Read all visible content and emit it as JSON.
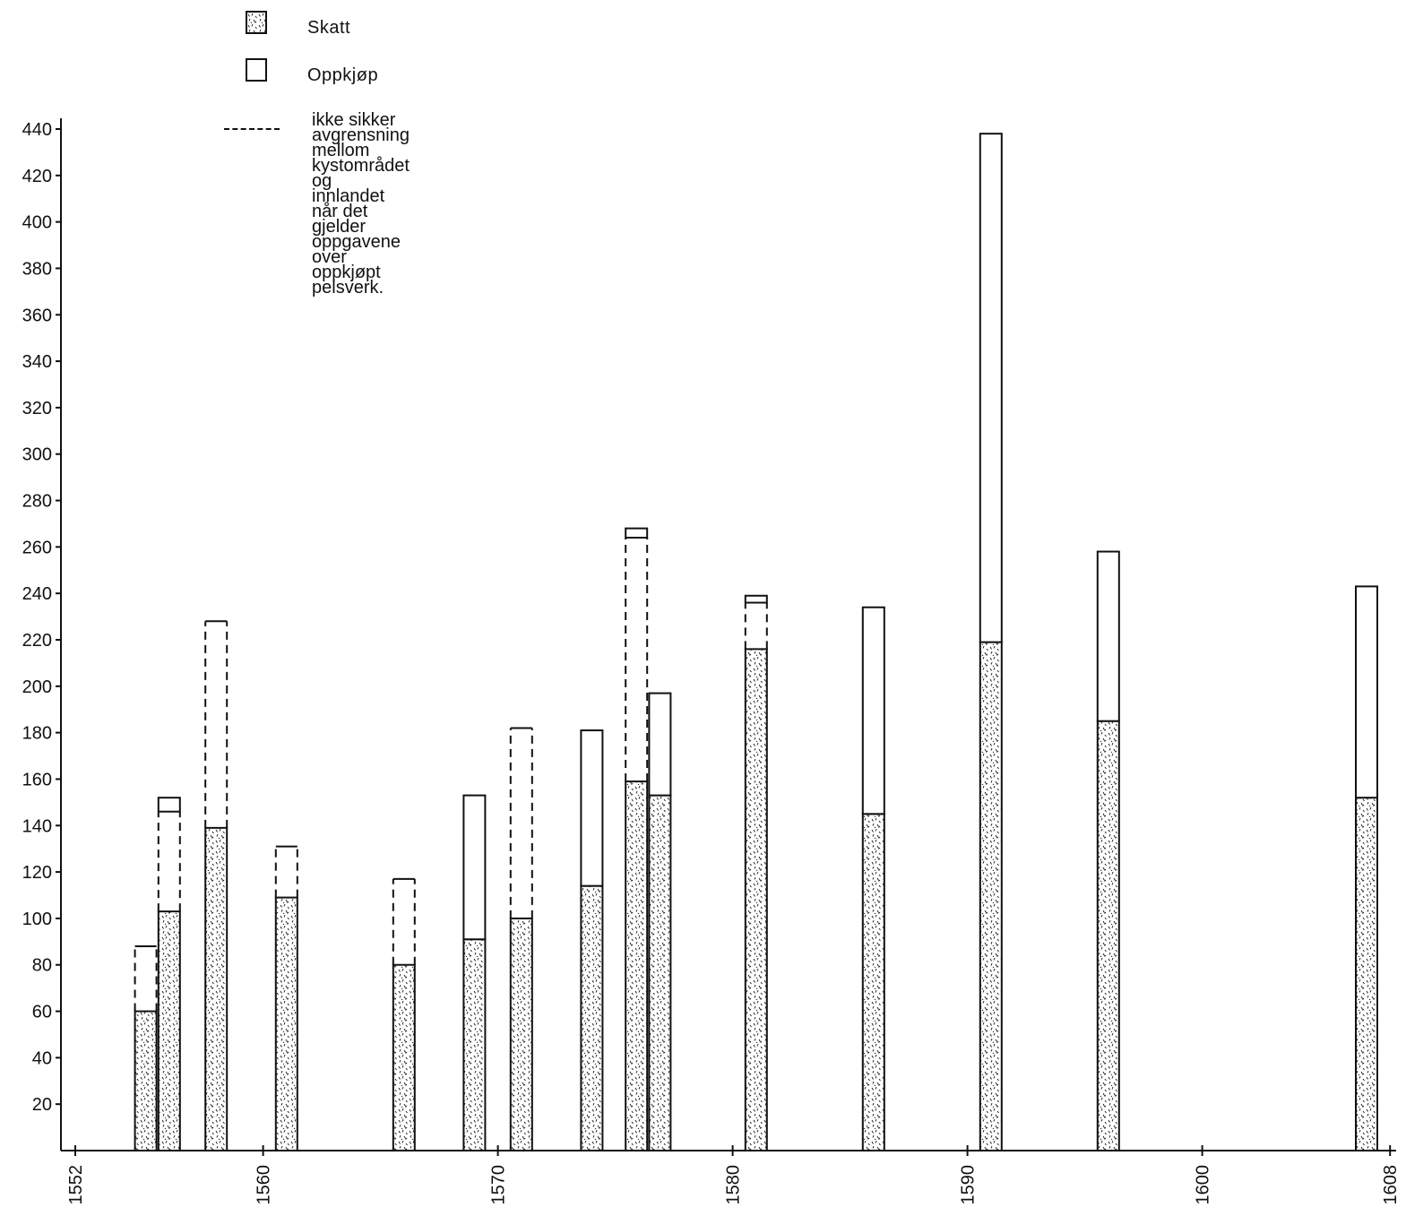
{
  "legend": {
    "skatt_label": "Skatt",
    "oppkjop_label": "Oppkjøp",
    "dashed_note": "ikke sikker avgrensning\nmellom kystområdet og\ninnlandet når det gjelder\noppgavene over oppkjøpt\npelsverk."
  },
  "colors": {
    "ink": "#111111",
    "background": "#ffffff"
  },
  "chart_data": {
    "type": "bar",
    "stacked": true,
    "xlim": [
      1552,
      1608
    ],
    "xticks": [
      1552,
      1560,
      1570,
      1580,
      1590,
      1600,
      1608
    ],
    "ylim": [
      0,
      440
    ],
    "yticks": [
      20,
      40,
      60,
      80,
      100,
      120,
      140,
      160,
      180,
      200,
      220,
      240,
      260,
      280,
      300,
      320,
      340,
      360,
      380,
      400,
      420,
      440
    ],
    "series": [
      {
        "name": "Skatt",
        "pattern": "stipple"
      },
      {
        "name": "Oppkjøp",
        "pattern": "open"
      }
    ],
    "bars": [
      {
        "x": 1555.0,
        "skatt": 60,
        "oppkjop_total": 88,
        "uncertain": true
      },
      {
        "x": 1556.0,
        "skatt": 103,
        "oppkjop_total": 152,
        "uncertain": true,
        "solid_cap": 146
      },
      {
        "x": 1558.0,
        "skatt": 139,
        "oppkjop_total": 228,
        "uncertain": true
      },
      {
        "x": 1561.0,
        "skatt": 109,
        "oppkjop_total": 131,
        "uncertain": true
      },
      {
        "x": 1566.0,
        "skatt": 80,
        "oppkjop_total": 117,
        "uncertain": true
      },
      {
        "x": 1569.0,
        "skatt": 91,
        "oppkjop_total": 153,
        "uncertain": false
      },
      {
        "x": 1571.0,
        "skatt": 100,
        "oppkjop_total": 182,
        "uncertain": true
      },
      {
        "x": 1574.0,
        "skatt": 114,
        "oppkjop_total": 181,
        "uncertain": false
      },
      {
        "x": 1575.9,
        "skatt": 159,
        "oppkjop_total": 268,
        "uncertain": true,
        "solid_cap": 264
      },
      {
        "x": 1576.9,
        "skatt": 153,
        "oppkjop_total": 197,
        "uncertain": false
      },
      {
        "x": 1581.0,
        "skatt": 216,
        "oppkjop_total": 239,
        "uncertain": true,
        "solid_cap": 236
      },
      {
        "x": 1586.0,
        "skatt": 145,
        "oppkjop_total": 234,
        "uncertain": false
      },
      {
        "x": 1591.0,
        "skatt": 219,
        "oppkjop_total": 438,
        "uncertain": false
      },
      {
        "x": 1596.0,
        "skatt": 185,
        "oppkjop_total": 258,
        "uncertain": false
      },
      {
        "x": 1607.0,
        "skatt": 152,
        "oppkjop_total": 243,
        "uncertain": false
      }
    ],
    "legend_position": "top-left",
    "grid": false
  }
}
